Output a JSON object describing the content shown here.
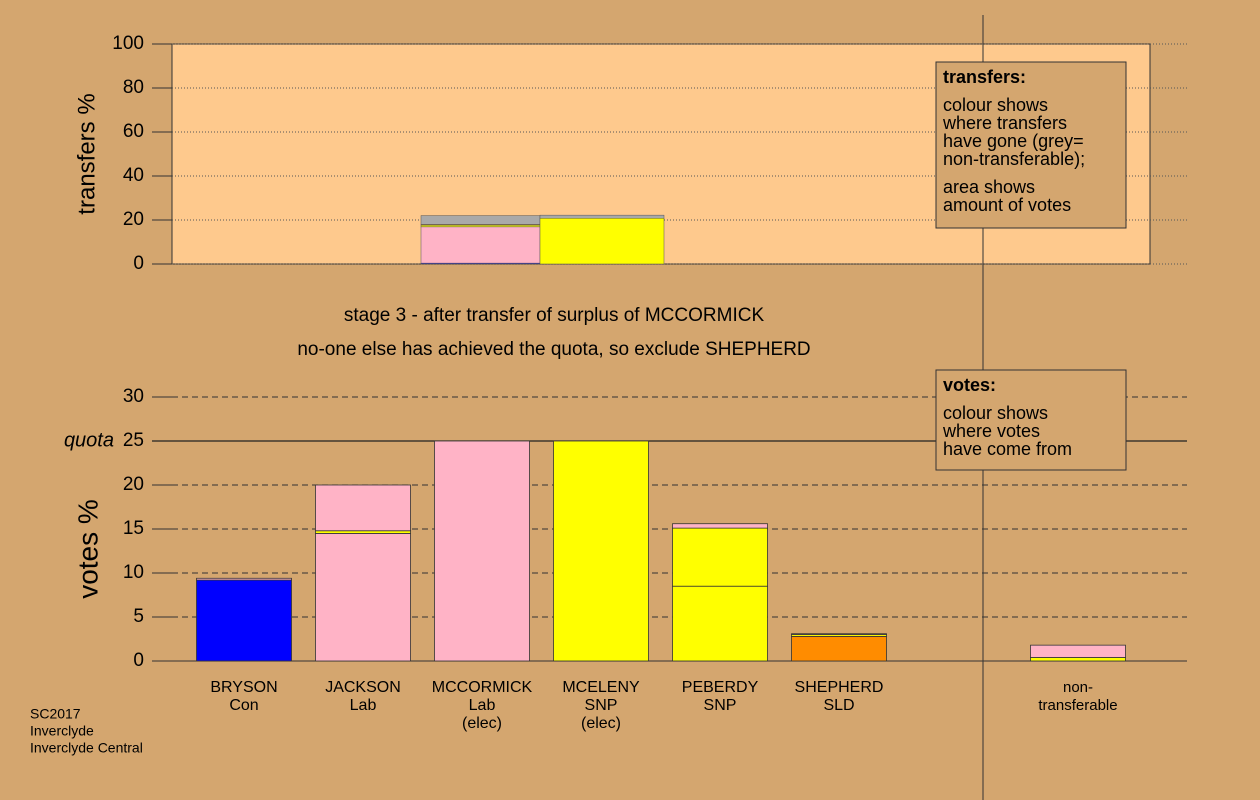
{
  "chart_data": [
    {
      "type": "transfer-bar",
      "y_label": "transfers %",
      "ylim": [
        0,
        100
      ],
      "yticks": [
        0,
        20,
        40,
        60,
        80,
        100
      ],
      "grid": true,
      "categories": [
        null,
        null
      ],
      "series": [
        {
          "color": "#0000ff",
          "values": [
            0.4,
            0
          ]
        },
        {
          "color": "#ffb3c6",
          "values": [
            16.5,
            0
          ]
        },
        {
          "color": "#ffff00",
          "values": [
            0.8,
            20.8
          ]
        },
        {
          "color": "#ff8c00",
          "values": [
            0.3,
            0
          ]
        },
        {
          "color": "#a9a9a9",
          "values": [
            4,
            1.4
          ]
        }
      ],
      "note": {
        "title": "transfers:",
        "paragraphs": [
          [
            "colour shows",
            "where transfers",
            "have gone (grey=",
            "non-transferable);"
          ],
          [
            "area shows",
            "amount of votes"
          ]
        ]
      }
    },
    {
      "type": "stacked-bar",
      "title": [
        "stage 3 - after transfer of surplus of MCCORMICK",
        "no-one else has achieved the quota, so exclude SHEPHERD"
      ],
      "y_label": "votes %",
      "ylim": [
        0,
        30
      ],
      "yticks": [
        0,
        5,
        10,
        15,
        20,
        25,
        30
      ],
      "grid": true,
      "quota": {
        "value": 25,
        "label": "quota"
      },
      "categories": [
        [
          "BRYSON",
          "Con"
        ],
        [
          "JACKSON",
          "Lab"
        ],
        [
          "MCCORMICK",
          "Lab",
          "(elec)"
        ],
        [
          "MCELENY",
          "SNP",
          "(elec)"
        ],
        [
          "PEBERDY",
          "SNP"
        ],
        [
          "SHEPHERD",
          "SLD"
        ],
        [
          "non-",
          "transferable"
        ]
      ],
      "series": [
        {
          "color": "#0000ff",
          "values": [
            9.2,
            0,
            0,
            0,
            0,
            0,
            0
          ]
        },
        {
          "color": "#ffb3c6",
          "values": [
            0,
            14.5,
            25,
            0,
            0,
            0,
            0
          ]
        },
        {
          "color": "#ffff00",
          "values": [
            0,
            0,
            0,
            25,
            8.5,
            0,
            0.4
          ]
        },
        {
          "color": "#ff8c00",
          "values": [
            0,
            0,
            0,
            0,
            0,
            2.8,
            0
          ]
        },
        {
          "color": "#ffff00",
          "values": [
            0,
            0.3,
            0,
            0,
            6.6,
            0.2,
            0
          ]
        },
        {
          "color": "#ffb3c6",
          "values": [
            0.2,
            5.2,
            0,
            0,
            0.5,
            0.1,
            1.4
          ]
        }
      ],
      "note": {
        "title": "votes:",
        "paragraphs": [
          [
            "colour shows",
            "where votes",
            "have come from"
          ]
        ]
      }
    }
  ],
  "footer": [
    "SC2017",
    "Inverclyde",
    "Inverclyde Central"
  ]
}
